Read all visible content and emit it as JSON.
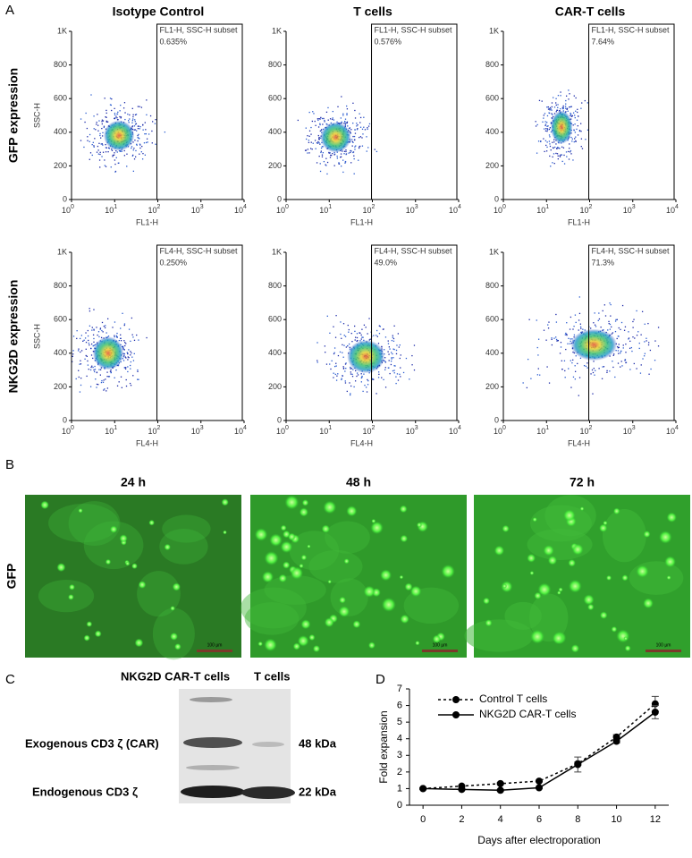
{
  "panel_labels": {
    "a": "A",
    "b": "B",
    "c": "C",
    "d": "D"
  },
  "flow": {
    "columns": [
      "Isotype Control",
      "T cells",
      "CAR-T cells"
    ],
    "rows": [
      {
        "label": "GFP expression",
        "x_label": "FL1-H",
        "y_label": "SSC-H",
        "gate_label": "FL1-H, SSC-H subset",
        "percentages": [
          "0.635%",
          "0.576%",
          "7.64%"
        ]
      },
      {
        "label": "NKG2D expression",
        "x_label": "FL4-H",
        "y_label": "SSC-H",
        "gate_label": "FL4-H, SSC-H subset",
        "percentages": [
          "0.250%",
          "49.0%",
          "71.3%"
        ]
      }
    ],
    "xticks": [
      {
        "value": 0,
        "label": "10",
        "exp": "0"
      },
      {
        "value": 1,
        "label": "10",
        "exp": "1"
      },
      {
        "value": 2,
        "label": "10",
        "exp": "2"
      },
      {
        "value": 3,
        "label": "10",
        "exp": "3"
      },
      {
        "value": 4,
        "label": "10",
        "exp": "4"
      }
    ],
    "yticks": [
      0,
      200,
      400,
      600,
      800,
      {
        "value": 1000,
        "label": "1K"
      }
    ]
  },
  "microscopy": {
    "times": [
      "24 h",
      "48 h",
      "72 h"
    ],
    "row_label": "GFP",
    "scale_bar": "100 µm"
  },
  "western_blot": {
    "lanes": [
      "NKG2D CAR-T cells",
      "T cells"
    ],
    "bands": [
      {
        "label": "Exogenous CD3 ζ (CAR)",
        "size": "48 kDa"
      },
      {
        "label": "Endogenous CD3 ζ",
        "size": "22 kDa"
      }
    ]
  },
  "chart_data": {
    "type": "line",
    "xlabel": "Days after electroporation",
    "ylabel": "Fold expansion",
    "x": [
      0,
      2,
      4,
      6,
      8,
      10,
      12
    ],
    "series": [
      {
        "name": "Control T cells",
        "color": "#000000",
        "dash": true,
        "values": [
          1.0,
          1.15,
          1.3,
          1.45,
          2.5,
          4.1,
          6.1
        ],
        "errors": [
          0.05,
          0.05,
          0.05,
          0.05,
          0.1,
          0.15,
          0.45
        ]
      },
      {
        "name": "NKG2D CAR-T cells",
        "color": "#000000",
        "dash": false,
        "values": [
          1.0,
          0.95,
          0.9,
          1.05,
          2.45,
          3.85,
          5.6
        ],
        "errors": [
          0.05,
          0.05,
          0.05,
          0.05,
          0.45,
          0.1,
          0.4
        ]
      }
    ],
    "xlim": [
      -0.7,
      12.7
    ],
    "ylim": [
      0,
      7
    ],
    "xticks": [
      0,
      2,
      4,
      6,
      8,
      10,
      12
    ],
    "yticks": [
      0,
      1,
      2,
      3,
      4,
      5,
      6,
      7
    ],
    "legend": "upper left"
  }
}
